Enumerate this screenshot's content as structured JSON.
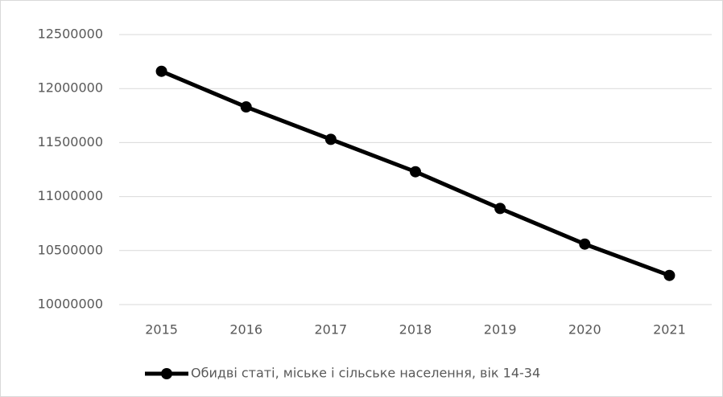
{
  "chart_data": {
    "type": "line",
    "categories": [
      "2015",
      "2016",
      "2017",
      "2018",
      "2019",
      "2020",
      "2021"
    ],
    "series": [
      {
        "name": "Обидві статі, міське і сільське населення, вік 14-34",
        "color": "#000000",
        "values": [
          12160000,
          11830000,
          11530000,
          11230000,
          10890000,
          10560000,
          10270000
        ]
      }
    ],
    "ylim": [
      10000000,
      12500000
    ],
    "yticks": [
      10000000,
      10500000,
      11000000,
      11500000,
      12000000,
      12500000
    ],
    "grid": true,
    "legend": "bottom"
  }
}
